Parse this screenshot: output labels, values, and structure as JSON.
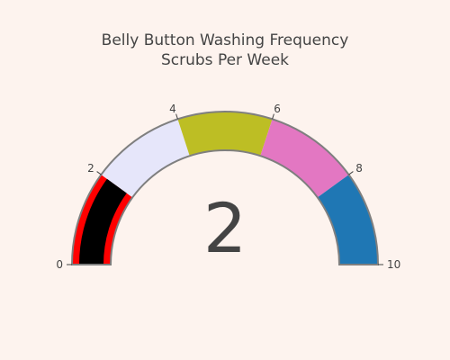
{
  "page": {
    "background": "#fdf3ee"
  },
  "chart_data": {
    "type": "gauge",
    "title": "Belly Button Washing Frequency",
    "subtitle": "Scrubs Per Week",
    "value": 2,
    "range": [
      0,
      10
    ],
    "ticks": [
      0,
      2,
      4,
      6,
      8,
      10
    ],
    "tick_labels": [
      "0",
      "2",
      "4",
      "6",
      "8",
      "10"
    ],
    "steps": [
      {
        "range": [
          0,
          2
        ],
        "color": "#ff0000"
      },
      {
        "range": [
          2,
          4
        ],
        "color": "#e6e6fa"
      },
      {
        "range": [
          4,
          6
        ],
        "color": "#bdbe24"
      },
      {
        "range": [
          6,
          8
        ],
        "color": "#e377c2"
      },
      {
        "range": [
          8,
          10
        ],
        "color": "#1f77b4"
      }
    ],
    "bar": {
      "color": "#000000"
    },
    "border_color": "#7f7f7f"
  }
}
